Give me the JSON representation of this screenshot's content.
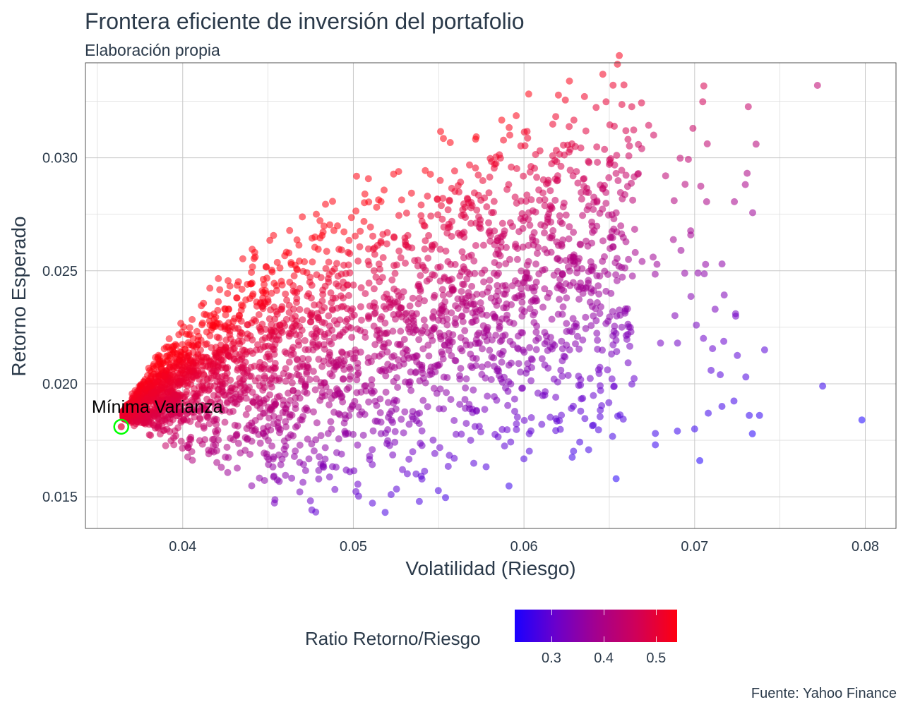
{
  "title": "Frontera eficiente de inversión del portafolio",
  "subtitle": "Elaboración propia",
  "caption": "Fuente: Yahoo Finance",
  "chart_data": {
    "type": "scatter",
    "title": "Frontera eficiente de inversión del portafolio",
    "subtitle": "Elaboración propia",
    "xlabel": "Volatilidad (Riesgo)",
    "ylabel": "Retorno Esperado",
    "xlim": [
      0.0343,
      0.0818
    ],
    "ylim": [
      0.0136,
      0.0342
    ],
    "x_ticks": [
      "0.04",
      "0.05",
      "0.06",
      "0.07",
      "0.08"
    ],
    "x_tick_values": [
      0.04,
      0.05,
      0.06,
      0.07,
      0.08
    ],
    "y_ticks": [
      "0.015",
      "0.020",
      "0.025",
      "0.030"
    ],
    "y_tick_values": [
      0.015,
      0.02,
      0.025,
      0.03
    ],
    "grid": true,
    "color_scale": {
      "name": "Ratio Retorno/Riesgo",
      "low_color": "#1a00ff",
      "high_color": "#ff0010",
      "range": [
        0.23,
        0.54
      ],
      "ticks": [
        "0.3",
        "0.4",
        "0.5"
      ],
      "tick_values": [
        0.3,
        0.4,
        0.5
      ]
    },
    "legend_placement": "bottom",
    "point_count": 5000,
    "highlight": {
      "label": "Mínima Varianza",
      "x": 0.0364,
      "y": 0.0181,
      "ring_color": "#00ff00"
    },
    "outliers": [
      {
        "x": 0.0772,
        "y": 0.0332
      },
      {
        "x": 0.0736,
        "y": 0.0306
      },
      {
        "x": 0.0699,
        "y": 0.0313
      },
      {
        "x": 0.0676,
        "y": 0.031
      },
      {
        "x": 0.0669,
        "y": 0.0304
      },
      {
        "x": 0.0667,
        "y": 0.0293
      },
      {
        "x": 0.0643,
        "y": 0.0298
      },
      {
        "x": 0.0683,
        "y": 0.0292
      },
      {
        "x": 0.0688,
        "y": 0.0281
      },
      {
        "x": 0.0741,
        "y": 0.0215
      },
      {
        "x": 0.0712,
        "y": 0.0233
      },
      {
        "x": 0.0715,
        "y": 0.0204
      },
      {
        "x": 0.073,
        "y": 0.0203
      },
      {
        "x": 0.0775,
        "y": 0.0199
      },
      {
        "x": 0.0798,
        "y": 0.0184
      },
      {
        "x": 0.0738,
        "y": 0.0186
      },
      {
        "x": 0.0732,
        "y": 0.0186
      },
      {
        "x": 0.0708,
        "y": 0.0187
      },
      {
        "x": 0.0703,
        "y": 0.0166
      },
      {
        "x": 0.0654,
        "y": 0.0158
      },
      {
        "x": 0.0677,
        "y": 0.0178
      },
      {
        "x": 0.0677,
        "y": 0.0173
      },
      {
        "x": 0.07,
        "y": 0.018
      },
      {
        "x": 0.0702,
        "y": 0.0249
      },
      {
        "x": 0.0692,
        "y": 0.0259
      },
      {
        "x": 0.0724,
        "y": 0.0231
      },
      {
        "x": 0.068,
        "y": 0.0218
      },
      {
        "x": 0.069,
        "y": 0.0218
      },
      {
        "x": 0.0716,
        "y": 0.019
      },
      {
        "x": 0.0701,
        "y": 0.0226
      }
    ]
  }
}
